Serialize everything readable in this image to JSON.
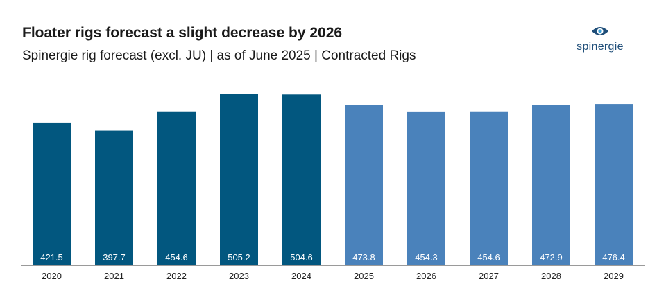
{
  "header": {
    "title": "Floater rigs forecast a slight decrease by 2026",
    "subtitle": "Spinergie rig forecast (excl. JU) | as of June 2025 | Contracted Rigs"
  },
  "logo": {
    "text": "spinergie",
    "icon": "spinergie-eye-logo-icon"
  },
  "colors": {
    "actual": "#02577f",
    "forecast": "#4a82bb",
    "axis": "#9a9a9a"
  },
  "chart_data": {
    "type": "bar",
    "title": "Floater rigs forecast a slight decrease by 2026",
    "subtitle": "Spinergie rig forecast (excl. JU) | as of June 2025 | Contracted Rigs",
    "xlabel": "",
    "ylabel": "",
    "categories": [
      "2020",
      "2021",
      "2022",
      "2023",
      "2024",
      "2025",
      "2026",
      "2027",
      "2028",
      "2029"
    ],
    "values": [
      421.5,
      397.7,
      454.6,
      505.2,
      504.6,
      473.8,
      454.3,
      454.6,
      472.9,
      476.4
    ],
    "labels": [
      "421.5",
      "397.7",
      "454.6",
      "505.2",
      "504.6",
      "473.8",
      "454.3",
      "454.6",
      "472.9",
      "476.4"
    ],
    "ylim": [
      0,
      505.2
    ],
    "grid": false,
    "legend": "none",
    "first_forecast_index": 5
  }
}
